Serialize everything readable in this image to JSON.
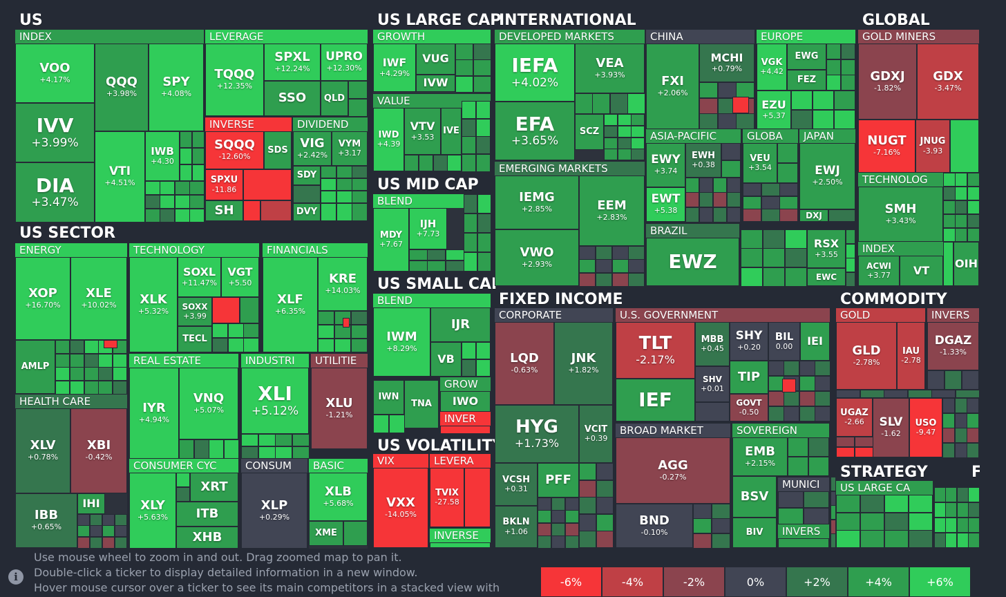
{
  "colors": {
    "background": "#252a35",
    "neg3": "#f63538",
    "neg2": "#bf4045",
    "neg1": "#8b444e",
    "zero": "#414554",
    "pos1": "#35764e",
    "pos2": "#2f9e4f",
    "pos3": "#30cc5a"
  },
  "sections": {
    "us": "US",
    "us_large_cap": "US LARGE CAP",
    "international": "INTERNATIONAL",
    "global": "GLOBAL",
    "us_sector": "US SECTOR",
    "us_mid_cap": "US MID CAP",
    "us_small_cap": "US SMALL CAP",
    "fixed_income": "FIXED INCOME",
    "commodity": "COMMODITY",
    "us_volatility": "US VOLATILITY",
    "strategy": "STRATEGY",
    "f": "F"
  },
  "groups": {
    "index": "INDEX",
    "leverage": "LEVERAGE",
    "inverse": "INVERSE",
    "dividend": "DIVIDEND",
    "growth": "GROWTH",
    "value": "VALUE",
    "developed_markets": "DEVELOPED MARKETS",
    "china": "CHINA",
    "europe": "EUROPE",
    "gold_miners": "GOLD MINERS",
    "asia_pacific": "ASIA-PACIFIC",
    "globa": "GLOBA",
    "japan": "JAPAN",
    "emerging_markets": "EMERGING MARKETS",
    "brazil": "BRAZIL",
    "technolog": "TECHNOLOG",
    "index_global": "INDEX",
    "blend_mid": "BLEND",
    "blend_small": "BLEND",
    "grow_small": "GROW",
    "inver_small": "INVER",
    "energy": "ENERGY",
    "technology": "TECHNOLOGY",
    "financials": "FINANCIALS",
    "health_care": "HEALTH CARE",
    "real_estate": "REAL ESTATE",
    "industri": "INDUSTRI",
    "utilitie": "UTILITIE",
    "consumer_cyc": "CONSUMER CYC",
    "consum": "CONSUM",
    "basic": "BASIC",
    "corporate": "CORPORATE",
    "us_government": "U.S. GOVERNMENT",
    "broad_market": "BROAD MARKET",
    "sovereign": "SOVEREIGN",
    "munici": "MUNICI",
    "invers_fi": "INVERS",
    "gold": "GOLD",
    "invers_com": "INVERS",
    "vix": "VIX",
    "levera": "LEVERA",
    "inverse_vol": "INVERSE",
    "us_large_ca": "US LARGE CA"
  },
  "tiles": [
    {
      "t": "VOO",
      "c": "+4.17%"
    },
    {
      "t": "QQQ",
      "c": "+3.98%"
    },
    {
      "t": "SPY",
      "c": "+4.08%"
    },
    {
      "t": "IVV",
      "c": "+3.99%"
    },
    {
      "t": "DIA",
      "c": "+3.47%"
    },
    {
      "t": "VTI",
      "c": "+4.51%"
    },
    {
      "t": "IWB",
      "c": "+4.30"
    },
    {
      "t": "TQQQ",
      "c": "+12.35%"
    },
    {
      "t": "SPXL",
      "c": "+12.24%"
    },
    {
      "t": "UPRO",
      "c": "+12.30%"
    },
    {
      "t": "SSO",
      "c": ""
    },
    {
      "t": "QLD",
      "c": ""
    },
    {
      "t": "SQQQ",
      "c": "-12.60%"
    },
    {
      "t": "SDS",
      "c": ""
    },
    {
      "t": "SPXU",
      "c": "-11.86"
    },
    {
      "t": "SH",
      "c": ""
    },
    {
      "t": "VIG",
      "c": "+2.42%"
    },
    {
      "t": "VYM",
      "c": "+3.17"
    },
    {
      "t": "SDY",
      "c": ""
    },
    {
      "t": "DVY",
      "c": ""
    },
    {
      "t": "IWF",
      "c": "+4.29%"
    },
    {
      "t": "VUG",
      "c": ""
    },
    {
      "t": "IVW",
      "c": ""
    },
    {
      "t": "IWD",
      "c": "+4.39"
    },
    {
      "t": "VTV",
      "c": "+3.53"
    },
    {
      "t": "IVE",
      "c": ""
    },
    {
      "t": "IEFA",
      "c": "+4.02%"
    },
    {
      "t": "VEA",
      "c": "+3.93%"
    },
    {
      "t": "EFA",
      "c": "+3.65%"
    },
    {
      "t": "SCZ",
      "c": ""
    },
    {
      "t": "FXI",
      "c": "+2.06%"
    },
    {
      "t": "MCHI",
      "c": "+0.79%"
    },
    {
      "t": "VGK",
      "c": "+4.42"
    },
    {
      "t": "EWG",
      "c": ""
    },
    {
      "t": "FEZ",
      "c": ""
    },
    {
      "t": "EZU",
      "c": "+5.37"
    },
    {
      "t": "GDXJ",
      "c": "-1.82%"
    },
    {
      "t": "GDX",
      "c": "-3.47%"
    },
    {
      "t": "NUGT",
      "c": "-7.16%"
    },
    {
      "t": "JNUG",
      "c": "-3.93"
    },
    {
      "t": "EWY",
      "c": "+3.74"
    },
    {
      "t": "EWH",
      "c": "+0.38"
    },
    {
      "t": "EWT",
      "c": "+5.38"
    },
    {
      "t": "VEU",
      "c": "+3.54"
    },
    {
      "t": "EWJ",
      "c": "+2.50%"
    },
    {
      "t": "DXJ",
      "c": ""
    },
    {
      "t": "SMH",
      "c": "+3.43%"
    },
    {
      "t": "ACWI",
      "c": "+3.77"
    },
    {
      "t": "VT",
      "c": ""
    },
    {
      "t": "OIH",
      "c": ""
    },
    {
      "t": "IEMG",
      "c": "+2.85%"
    },
    {
      "t": "EEM",
      "c": "+2.83%"
    },
    {
      "t": "VWO",
      "c": "+2.93%"
    },
    {
      "t": "EWZ",
      "c": ""
    },
    {
      "t": "RSX",
      "c": "+3.55"
    },
    {
      "t": "EWC",
      "c": ""
    },
    {
      "t": "MDY",
      "c": "+7.67"
    },
    {
      "t": "IJH",
      "c": "+7.73"
    },
    {
      "t": "IWM",
      "c": "+8.29%"
    },
    {
      "t": "IJR",
      "c": ""
    },
    {
      "t": "VB",
      "c": ""
    },
    {
      "t": "IWN",
      "c": ""
    },
    {
      "t": "TNA",
      "c": ""
    },
    {
      "t": "IWO",
      "c": ""
    },
    {
      "t": "XOP",
      "c": "+16.70%"
    },
    {
      "t": "XLE",
      "c": "+10.02%"
    },
    {
      "t": "AMLP",
      "c": ""
    },
    {
      "t": "XLK",
      "c": "+5.32%"
    },
    {
      "t": "SOXL",
      "c": "+11.47%"
    },
    {
      "t": "VGT",
      "c": "+5.50"
    },
    {
      "t": "SOXX",
      "c": "+3.99"
    },
    {
      "t": "TECL",
      "c": ""
    },
    {
      "t": "XLF",
      "c": "+6.35%"
    },
    {
      "t": "KRE",
      "c": "+14.03%"
    },
    {
      "t": "XLV",
      "c": "+0.78%"
    },
    {
      "t": "XBI",
      "c": "-0.42%"
    },
    {
      "t": "IBB",
      "c": "+0.65%"
    },
    {
      "t": "IHI",
      "c": ""
    },
    {
      "t": "IYR",
      "c": "+4.94%"
    },
    {
      "t": "VNQ",
      "c": "+5.07%"
    },
    {
      "t": "XLI",
      "c": "+5.12%"
    },
    {
      "t": "XLU",
      "c": "-1.21%"
    },
    {
      "t": "XLY",
      "c": "+5.63%"
    },
    {
      "t": "XRT",
      "c": ""
    },
    {
      "t": "ITB",
      "c": ""
    },
    {
      "t": "XHB",
      "c": ""
    },
    {
      "t": "XLP",
      "c": "+0.29%"
    },
    {
      "t": "XLB",
      "c": "+5.68%"
    },
    {
      "t": "XME",
      "c": ""
    },
    {
      "t": "VXX",
      "c": "-14.05%"
    },
    {
      "t": "TVIX",
      "c": "-27.58"
    },
    {
      "t": "LQD",
      "c": "-0.63%"
    },
    {
      "t": "JNK",
      "c": "+1.82%"
    },
    {
      "t": "HYG",
      "c": "+1.73%"
    },
    {
      "t": "VCIT",
      "c": "+0.39"
    },
    {
      "t": "PFF",
      "c": ""
    },
    {
      "t": "VCSH",
      "c": "+0.31"
    },
    {
      "t": "BKLN",
      "c": "+1.06"
    },
    {
      "t": "TLT",
      "c": "-2.17%"
    },
    {
      "t": "MBB",
      "c": "+0.45"
    },
    {
      "t": "SHY",
      "c": "+0.20"
    },
    {
      "t": "BIL",
      "c": "0.00"
    },
    {
      "t": "IEI",
      "c": ""
    },
    {
      "t": "TIP",
      "c": ""
    },
    {
      "t": "IEF",
      "c": ""
    },
    {
      "t": "SHV",
      "c": "+0.01"
    },
    {
      "t": "GOVT",
      "c": "-0.50"
    },
    {
      "t": "AGG",
      "c": "-0.27%"
    },
    {
      "t": "BND",
      "c": "-0.10%"
    },
    {
      "t": "EMB",
      "c": "+2.15%"
    },
    {
      "t": "BSV",
      "c": ""
    },
    {
      "t": "BIV",
      "c": ""
    },
    {
      "t": "GLD",
      "c": "-2.78%"
    },
    {
      "t": "IAU",
      "c": "-2.78"
    },
    {
      "t": "DGAZ",
      "c": "-1.33%"
    },
    {
      "t": "UGAZ",
      "c": "-2.66"
    },
    {
      "t": "SLV",
      "c": "-1.62"
    },
    {
      "t": "USO",
      "c": "-9.47"
    }
  ],
  "footer": {
    "line1": "Use mouse wheel to zoom in and out. Drag zoomed map to pan it.",
    "line2": "Double-click a ticker to display detailed information in a new window.",
    "line3": "Hover mouse cursor over a ticker to see its main competitors in a stacked view with"
  },
  "legend": [
    "-6%",
    "-4%",
    "-2%",
    "0%",
    "+2%",
    "+4%",
    "+6%"
  ]
}
